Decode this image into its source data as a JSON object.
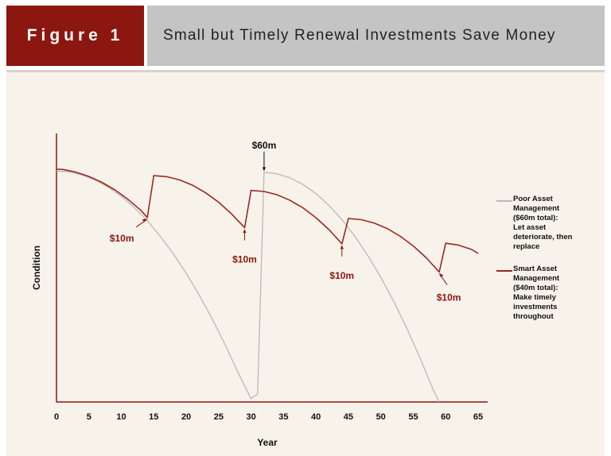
{
  "header": {
    "figure_label": "Figure 1",
    "title": "Small but Timely Renewal Investments Save Money"
  },
  "colors": {
    "brand": "#8b1710",
    "header_gray": "#c4c4c4",
    "panel_bg": "#f7f2ea",
    "poor_series": "#b9b9b9",
    "smart_series": "#9b2a22"
  },
  "chart_data": {
    "type": "line",
    "title": "Small but Timely Renewal Investments Save Money",
    "xlabel": "Year",
    "ylabel": "Condition",
    "xlim": [
      0,
      65
    ],
    "ylim": [
      0,
      100
    ],
    "x_ticks": [
      "0",
      "5",
      "10",
      "15",
      "20",
      "25",
      "30",
      "35",
      "40",
      "45",
      "50",
      "55",
      "60",
      "65"
    ],
    "grid": false,
    "legend_position": "right",
    "series": [
      {
        "name": "Poor Asset Management ($60m total): Let asset deteriorate, then replace",
        "color": "#b9b9b9",
        "points": [
          [
            0,
            86
          ],
          [
            2,
            85.7
          ],
          [
            4,
            84.5
          ],
          [
            6,
            82.6
          ],
          [
            8,
            80
          ],
          [
            10,
            76.6
          ],
          [
            12,
            72.4
          ],
          [
            14,
            67.5
          ],
          [
            16,
            61.7
          ],
          [
            18,
            55.2
          ],
          [
            20,
            47.9
          ],
          [
            22,
            39.8
          ],
          [
            24,
            31
          ],
          [
            26,
            21.3
          ],
          [
            28,
            10.9
          ],
          [
            30,
            1.2
          ],
          [
            31,
            3
          ],
          [
            32,
            85.5
          ],
          [
            34,
            85
          ],
          [
            36,
            83.5
          ],
          [
            38,
            81
          ],
          [
            40,
            77.6
          ],
          [
            42,
            73.2
          ],
          [
            44,
            67.9
          ],
          [
            46,
            61.7
          ],
          [
            48,
            54.5
          ],
          [
            50,
            46.4
          ],
          [
            52,
            37.4
          ],
          [
            54,
            27.5
          ],
          [
            56,
            16.7
          ],
          [
            58,
            5
          ],
          [
            59,
            0
          ]
        ]
      },
      {
        "name": "Smart Asset Management ($40m total): Make timely investments throughout",
        "color": "#9b2a22",
        "points": [
          [
            0,
            86.7
          ],
          [
            1,
            86.6
          ],
          [
            3,
            85.6
          ],
          [
            5,
            84
          ],
          [
            7,
            81.8
          ],
          [
            9,
            79
          ],
          [
            11,
            75.5
          ],
          [
            13,
            71.4
          ],
          [
            14,
            68.7
          ],
          [
            15,
            84.3
          ],
          [
            17,
            83.9
          ],
          [
            19,
            82.7
          ],
          [
            21,
            80.7
          ],
          [
            23,
            77.9
          ],
          [
            25,
            74.4
          ],
          [
            27,
            70
          ],
          [
            29,
            64.9
          ],
          [
            30,
            78.8
          ],
          [
            32,
            78.4
          ],
          [
            34,
            77.2
          ],
          [
            36,
            75.1
          ],
          [
            38,
            72.3
          ],
          [
            40,
            68.6
          ],
          [
            42,
            64.2
          ],
          [
            44,
            58.9
          ],
          [
            45,
            68.3
          ],
          [
            47,
            67.9
          ],
          [
            49,
            66.6
          ],
          [
            51,
            64.6
          ],
          [
            53,
            61.7
          ],
          [
            55,
            58.1
          ],
          [
            57,
            53.7
          ],
          [
            59,
            48.4
          ],
          [
            60,
            59.1
          ],
          [
            62,
            58.4
          ],
          [
            64,
            56.8
          ],
          [
            65,
            55.3
          ]
        ]
      }
    ],
    "annotations": [
      {
        "text": "$60m",
        "x": 32,
        "y": 85.5,
        "color": "#111111"
      },
      {
        "text": "$10m",
        "x": 14,
        "y": 68.7,
        "color": "#8b1710"
      },
      {
        "text": "$10m",
        "x": 29,
        "y": 64.9,
        "color": "#8b1710"
      },
      {
        "text": "$10m",
        "x": 44,
        "y": 58.9,
        "color": "#8b1710"
      },
      {
        "text": "$10m",
        "x": 59,
        "y": 48.4,
        "color": "#8b1710"
      }
    ]
  },
  "legend": {
    "poor": [
      "Poor Asset",
      "Management",
      "($60m total):",
      "Let asset",
      "deteriorate, then",
      "replace"
    ],
    "smart": [
      "Smart Asset",
      "Management",
      "($40m total):",
      "Make timely",
      "investments",
      "throughout"
    ]
  }
}
